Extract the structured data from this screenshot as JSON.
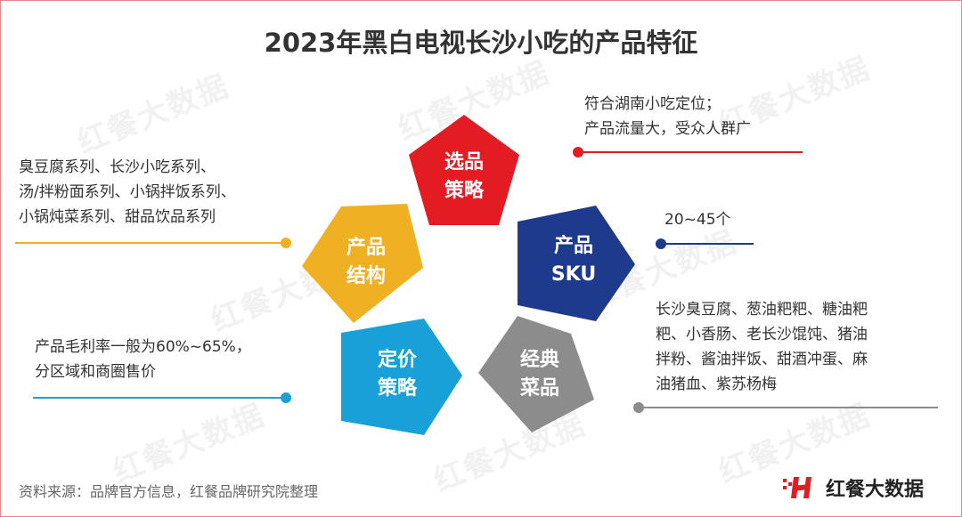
{
  "title": "2023年黑白电视长沙小吃的产品特征",
  "watermark": "红餐大数据",
  "segments": [
    {
      "id": "selection",
      "label_lines": [
        "选品",
        "策略"
      ],
      "color": "#e31b23",
      "note_lines": [
        "符合湖南小吃定位；",
        "产品流量大，受众人群广"
      ]
    },
    {
      "id": "sku",
      "label_lines": [
        "产品",
        "SKU"
      ],
      "color": "#1e3a8c",
      "note_lines": [
        "20~45个"
      ]
    },
    {
      "id": "dishes",
      "label_lines": [
        "经典",
        "菜品"
      ],
      "color": "#8c8c8c",
      "note_lines": [
        "长沙臭豆腐、葱油粑粑、糖油粑",
        "粑、小香肠、老长沙馄饨、猪油",
        "拌粉、酱油拌饭、甜酒冲蛋、麻",
        "油猪血、紫苏杨梅"
      ]
    },
    {
      "id": "pricing",
      "label_lines": [
        "定价",
        "策略"
      ],
      "color": "#1aa0d8",
      "note_lines": [
        "产品毛利率一般为60%~65%，",
        "分区域和商圈售价"
      ]
    },
    {
      "id": "structure",
      "label_lines": [
        "产品",
        "结构"
      ],
      "color": "#f0b023",
      "note_lines": [
        "臭豆腐系列、长沙小吃系列、",
        "汤/拌粉面系列、小锅拌饭系列、",
        "小锅炖菜系列、甜品饮品系列"
      ]
    }
  ],
  "source": "资料来源：品牌官方信息，红餐品牌研究院整理",
  "logo_text": "红餐大数据"
}
